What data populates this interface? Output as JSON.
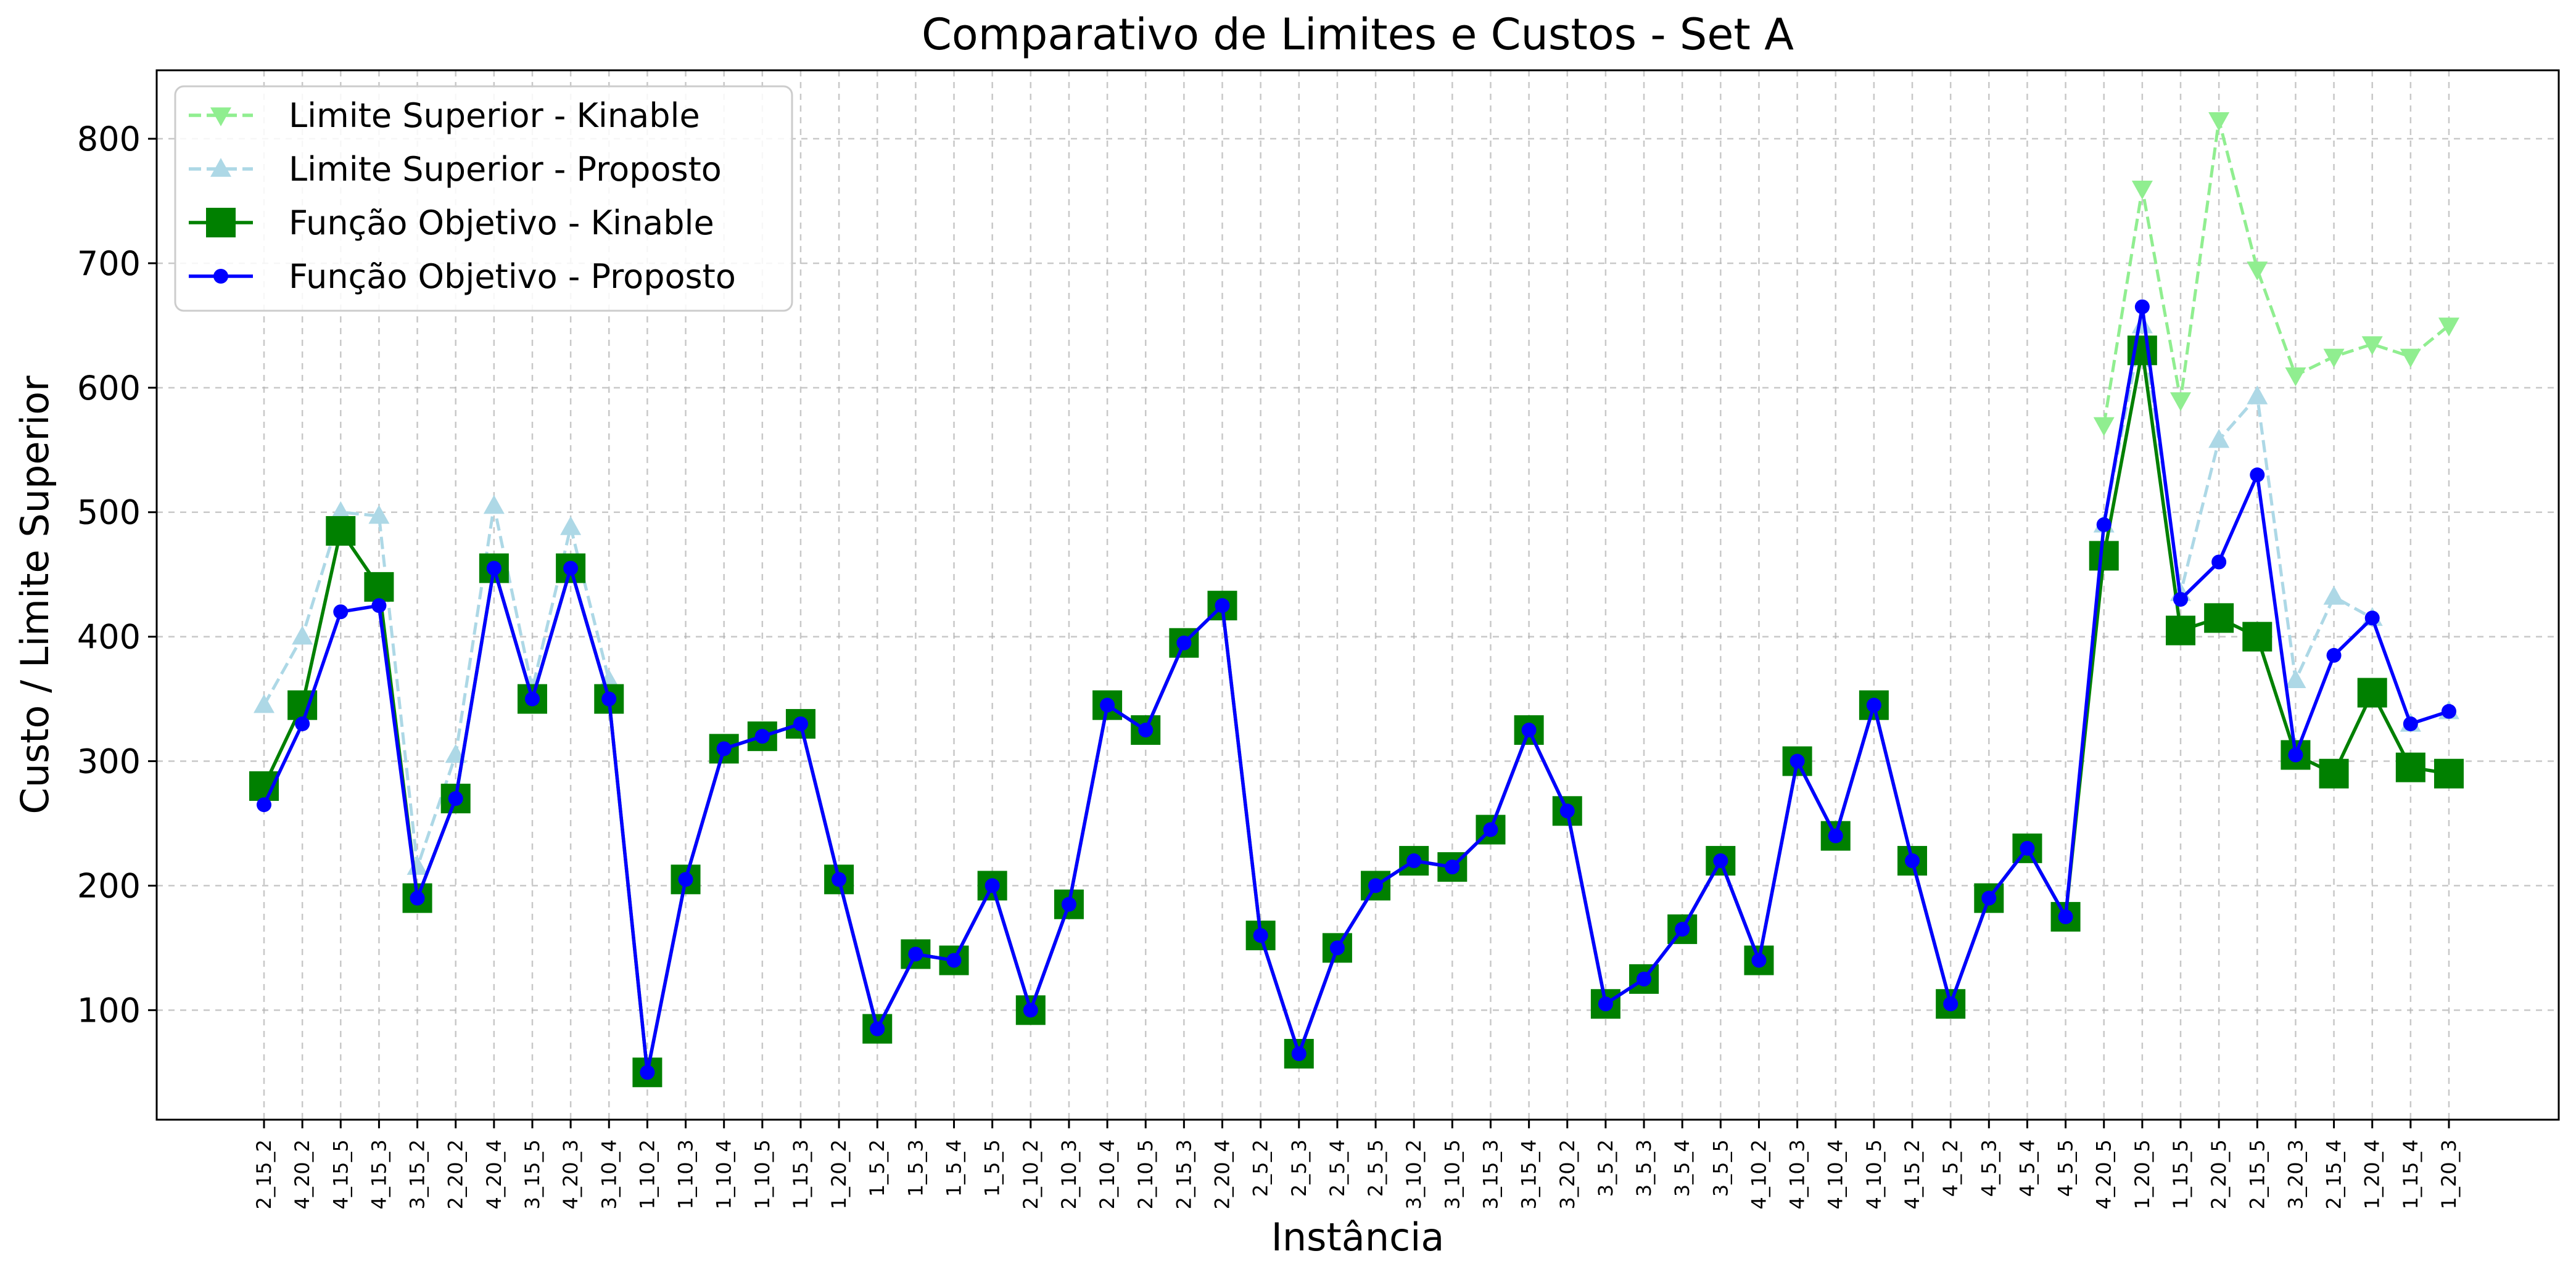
{
  "chart_data": {
    "type": "line",
    "title": "Comparativo de Limites e Custos - Set A",
    "xlabel": "Instância",
    "ylabel": "Custo / Limite Superior",
    "ylim": [
      12,
      855
    ],
    "yticks": [
      100,
      200,
      300,
      400,
      500,
      600,
      700,
      800
    ],
    "grid": true,
    "legend_position": "upper-left",
    "categories": [
      "2_15_2",
      "4_20_2",
      "4_15_5",
      "4_15_3",
      "3_15_2",
      "2_20_2",
      "4_20_4",
      "3_15_5",
      "4_20_3",
      "3_10_4",
      "1_10_2",
      "1_10_3",
      "1_10_4",
      "1_10_5",
      "1_15_3",
      "1_20_2",
      "1_5_2",
      "1_5_3",
      "1_5_4",
      "1_5_5",
      "2_10_2",
      "2_10_3",
      "2_10_4",
      "2_10_5",
      "2_15_3",
      "2_20_4",
      "2_5_2",
      "2_5_3",
      "2_5_4",
      "2_5_5",
      "3_10_2",
      "3_10_5",
      "3_15_3",
      "3_15_4",
      "3_20_2",
      "3_5_2",
      "3_5_3",
      "3_5_4",
      "3_5_5",
      "4_10_2",
      "4_10_3",
      "4_10_4",
      "4_10_5",
      "4_15_2",
      "4_5_2",
      "4_5_3",
      "4_5_4",
      "4_5_5",
      "4_20_5",
      "1_20_5",
      "1_15_5",
      "2_20_5",
      "2_15_5",
      "3_20_3",
      "2_15_4",
      "1_20_4",
      "1_15_4",
      "1_20_3"
    ],
    "series": [
      {
        "name": "Limite Superior - Kinable",
        "color": "#90ee90",
        "style": "dashed",
        "marker": "triangle-down",
        "values": [
          null,
          null,
          null,
          null,
          null,
          null,
          null,
          null,
          null,
          null,
          null,
          null,
          null,
          null,
          null,
          null,
          null,
          null,
          null,
          null,
          null,
          null,
          null,
          null,
          null,
          null,
          null,
          null,
          null,
          null,
          null,
          null,
          null,
          null,
          null,
          null,
          null,
          null,
          null,
          null,
          null,
          null,
          null,
          null,
          null,
          null,
          null,
          null,
          570,
          760,
          590,
          815,
          695,
          610,
          625,
          635,
          625,
          650
        ]
      },
      {
        "name": "Limite Superior - Proposto",
        "color": "#add8e6",
        "style": "dashed",
        "marker": "triangle-up",
        "values": [
          345,
          400,
          500,
          497,
          215,
          305,
          505,
          358,
          488,
          365,
          null,
          null,
          null,
          null,
          null,
          null,
          null,
          null,
          null,
          null,
          null,
          null,
          null,
          null,
          null,
          null,
          null,
          null,
          null,
          null,
          null,
          null,
          null,
          null,
          null,
          null,
          null,
          null,
          null,
          null,
          null,
          null,
          null,
          null,
          null,
          null,
          null,
          null,
          490,
          650,
          435,
          558,
          593,
          365,
          432,
          415,
          330,
          340
        ]
      },
      {
        "name": "Função Objetivo - Kinable",
        "color": "#008000",
        "style": "solid",
        "marker": "square",
        "values": [
          280,
          345,
          485,
          440,
          190,
          270,
          455,
          350,
          455,
          350,
          50,
          205,
          310,
          320,
          330,
          205,
          85,
          145,
          140,
          200,
          100,
          185,
          345,
          325,
          395,
          425,
          160,
          65,
          150,
          200,
          220,
          215,
          245,
          325,
          260,
          105,
          125,
          165,
          220,
          140,
          300,
          240,
          345,
          220,
          105,
          190,
          230,
          175,
          465,
          630,
          405,
          415,
          400,
          305,
          290,
          355,
          295,
          290
        ]
      },
      {
        "name": "Função Objetivo - Proposto",
        "color": "#0000ff",
        "style": "solid",
        "marker": "circle",
        "values": [
          265,
          330,
          420,
          425,
          190,
          270,
          455,
          350,
          455,
          350,
          50,
          205,
          310,
          320,
          330,
          205,
          85,
          145,
          140,
          200,
          100,
          185,
          345,
          325,
          395,
          425,
          160,
          65,
          150,
          200,
          220,
          215,
          245,
          325,
          260,
          105,
          125,
          165,
          220,
          140,
          300,
          240,
          345,
          220,
          105,
          190,
          230,
          175,
          490,
          665,
          430,
          460,
          530,
          305,
          385,
          415,
          330,
          340
        ]
      }
    ]
  }
}
